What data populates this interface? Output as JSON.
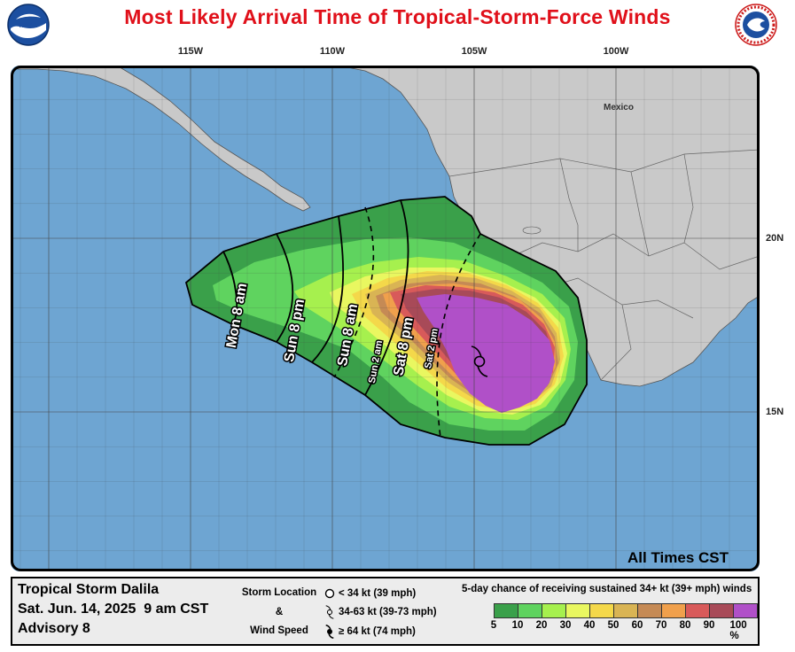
{
  "title": "Most Likely Arrival Time of Tropical-Storm-Force Winds",
  "logos": {
    "left": "NOAA",
    "right": "NATIONAL WEATHER SERVICE"
  },
  "longitudes": [
    {
      "label": "115W",
      "lon": -115
    },
    {
      "label": "110W",
      "lon": -110
    },
    {
      "label": "105W",
      "lon": -105
    },
    {
      "label": "100W",
      "lon": -100
    }
  ],
  "latitudes": [
    {
      "label": "20N",
      "lat": 20
    },
    {
      "label": "15N",
      "lat": 15
    }
  ],
  "place_label": "Mexico",
  "time_zone_note": "All Times CST",
  "contour_labels": [
    "Mon 8 am",
    "Sun 8 pm",
    "Sun 8 am",
    "Sun 2 am",
    "Sat 8 pm",
    "Sat 2 pm"
  ],
  "storm": {
    "name": "Tropical Storm Dalila",
    "datetime": "Sat. Jun. 14, 2025  9 am CST",
    "advisory": "Advisory 8"
  },
  "storm_key": {
    "title_lines": [
      "Storm Location",
      "&",
      "Wind Speed"
    ],
    "items": [
      {
        "icon": "open-circle-icon",
        "text": "< 34 kt (39 mph)"
      },
      {
        "icon": "tropical-storm-icon",
        "text": "34-63 kt (39-73 mph)"
      },
      {
        "icon": "hurricane-icon",
        "text": "≥ 64 kt (74 mph)"
      }
    ]
  },
  "probability_legend": {
    "title": "5-day chance of receiving sustained 34+ kt (39+ mph) winds",
    "ticks": [
      "5",
      "10",
      "20",
      "30",
      "40",
      "50",
      "60",
      "70",
      "80",
      "90",
      "100 %"
    ],
    "colors": [
      "#3aa04a",
      "#5fd35f",
      "#a6f04e",
      "#e9f760",
      "#f4d84a",
      "#d9b454",
      "#c58a55",
      "#f0a04c",
      "#d85a5a",
      "#a84a58",
      "#b050c8"
    ]
  },
  "colors": {
    "ocean": "#6ea5d2",
    "land": "#c9c9c9",
    "title": "#e0101a"
  }
}
